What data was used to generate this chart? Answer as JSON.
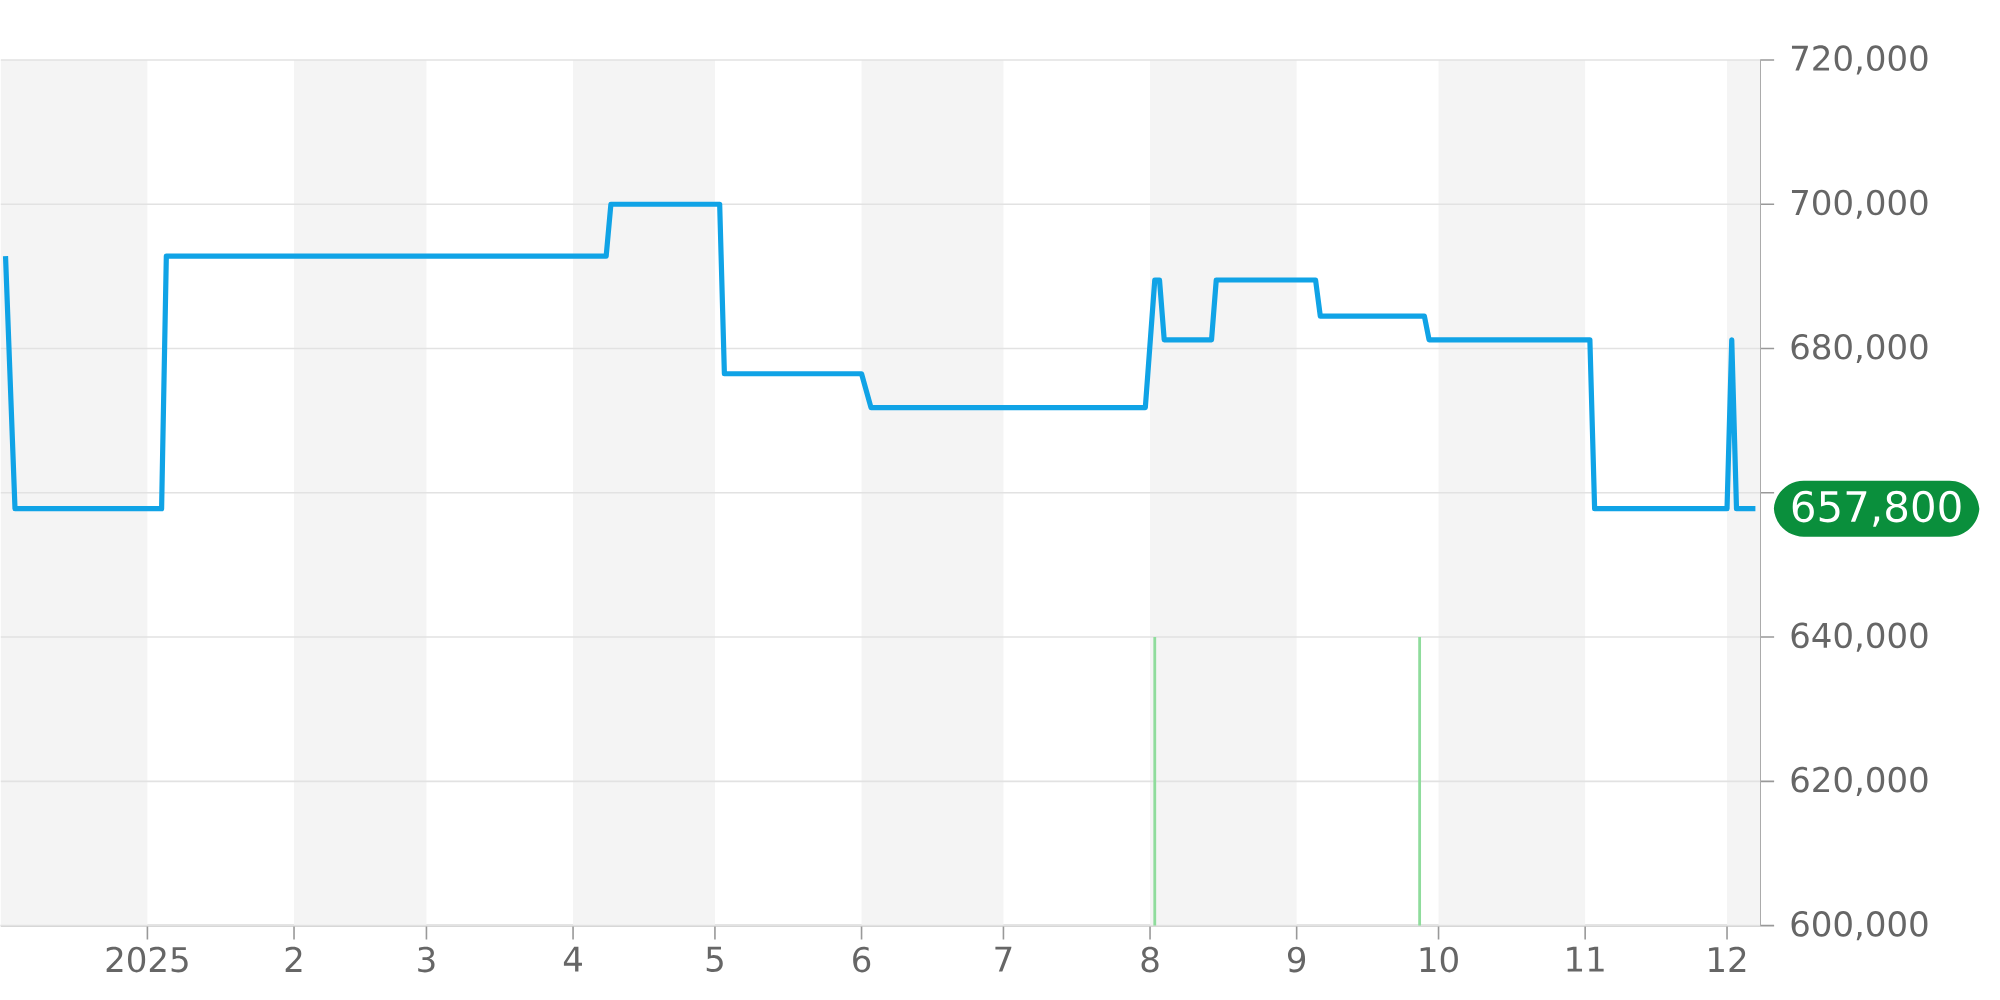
{
  "chart_data": {
    "type": "line",
    "x": [
      "2024-12-02",
      "2024-12-04",
      "2025-01-04",
      "2025-01-05",
      "2025-04-08",
      "2025-04-09",
      "2025-05-02",
      "2025-05-03",
      "2025-06-01",
      "2025-06-03",
      "2025-07-31",
      "2025-08-02",
      "2025-08-03",
      "2025-08-04",
      "2025-08-14",
      "2025-08-15",
      "2025-09-05",
      "2025-09-06",
      "2025-09-28",
      "2025-09-29",
      "2025-11-02",
      "2025-11-03",
      "2025-12-01",
      "2025-12-02",
      "2025-12-03",
      "2025-12-07"
    ],
    "series": [
      {
        "color": "#10a3e6",
        "values": [
          692800,
          657800,
          657800,
          692800,
          692800,
          700000,
          700000,
          676500,
          676500,
          671800,
          671800,
          689500,
          689500,
          681200,
          681200,
          689500,
          689500,
          684500,
          684500,
          681200,
          681200,
          657800,
          657800,
          681200,
          657800,
          657800
        ]
      },
      {
        "type": "bar",
        "color": "#8fdc9c",
        "x": [
          "2025-08-02",
          "2025-09-27"
        ],
        "values": [
          640000,
          640000
        ]
      }
    ],
    "xlim": [
      "2024-12-01",
      "2025-12-08"
    ],
    "xticks": [
      {
        "value": "2025-01-01",
        "label": "2025"
      },
      {
        "value": "2025-02-01",
        "label": "2"
      },
      {
        "value": "2025-03-01",
        "label": "3"
      },
      {
        "value": "2025-04-01",
        "label": "4"
      },
      {
        "value": "2025-05-01",
        "label": "5"
      },
      {
        "value": "2025-06-01",
        "label": "6"
      },
      {
        "value": "2025-07-01",
        "label": "7"
      },
      {
        "value": "2025-08-01",
        "label": "8"
      },
      {
        "value": "2025-09-01",
        "label": "9"
      },
      {
        "value": "2025-10-01",
        "label": "10"
      },
      {
        "value": "2025-11-01",
        "label": "11"
      },
      {
        "value": "2025-12-01",
        "label": "12"
      }
    ],
    "ylim": [
      600000,
      720000
    ],
    "yticks": [
      {
        "value": 600000,
        "label": "600,000"
      },
      {
        "value": 620000,
        "label": "620,000"
      },
      {
        "value": 640000,
        "label": "640,000"
      },
      {
        "value": 660000,
        "label": null
      },
      {
        "value": 680000,
        "label": "680,000"
      },
      {
        "value": 700000,
        "label": "700,000"
      },
      {
        "value": 720000,
        "label": "720,000"
      }
    ],
    "grid": "y",
    "marker": "none",
    "line_style": "solid",
    "bands": [
      {
        "axis": "x",
        "from": "2024-12-01",
        "to": "2025-01-01",
        "color": "#f4f4f4"
      },
      {
        "axis": "x",
        "from": "2025-02-01",
        "to": "2025-03-01",
        "color": "#f4f4f4"
      },
      {
        "axis": "x",
        "from": "2025-04-01",
        "to": "2025-05-01",
        "color": "#f4f4f4"
      },
      {
        "axis": "x",
        "from": "2025-06-01",
        "to": "2025-07-01",
        "color": "#f4f4f4"
      },
      {
        "axis": "x",
        "from": "2025-08-01",
        "to": "2025-09-01",
        "color": "#f4f4f4"
      },
      {
        "axis": "x",
        "from": "2025-10-01",
        "to": "2025-11-01",
        "color": "#f4f4f4"
      },
      {
        "axis": "x",
        "from": "2025-12-01",
        "to": "2025-12-08",
        "color": "#f4f4f4"
      }
    ],
    "annotations": [
      {
        "text": "657,800",
        "x": "2025-12-07",
        "y": 657800
      }
    ]
  }
}
